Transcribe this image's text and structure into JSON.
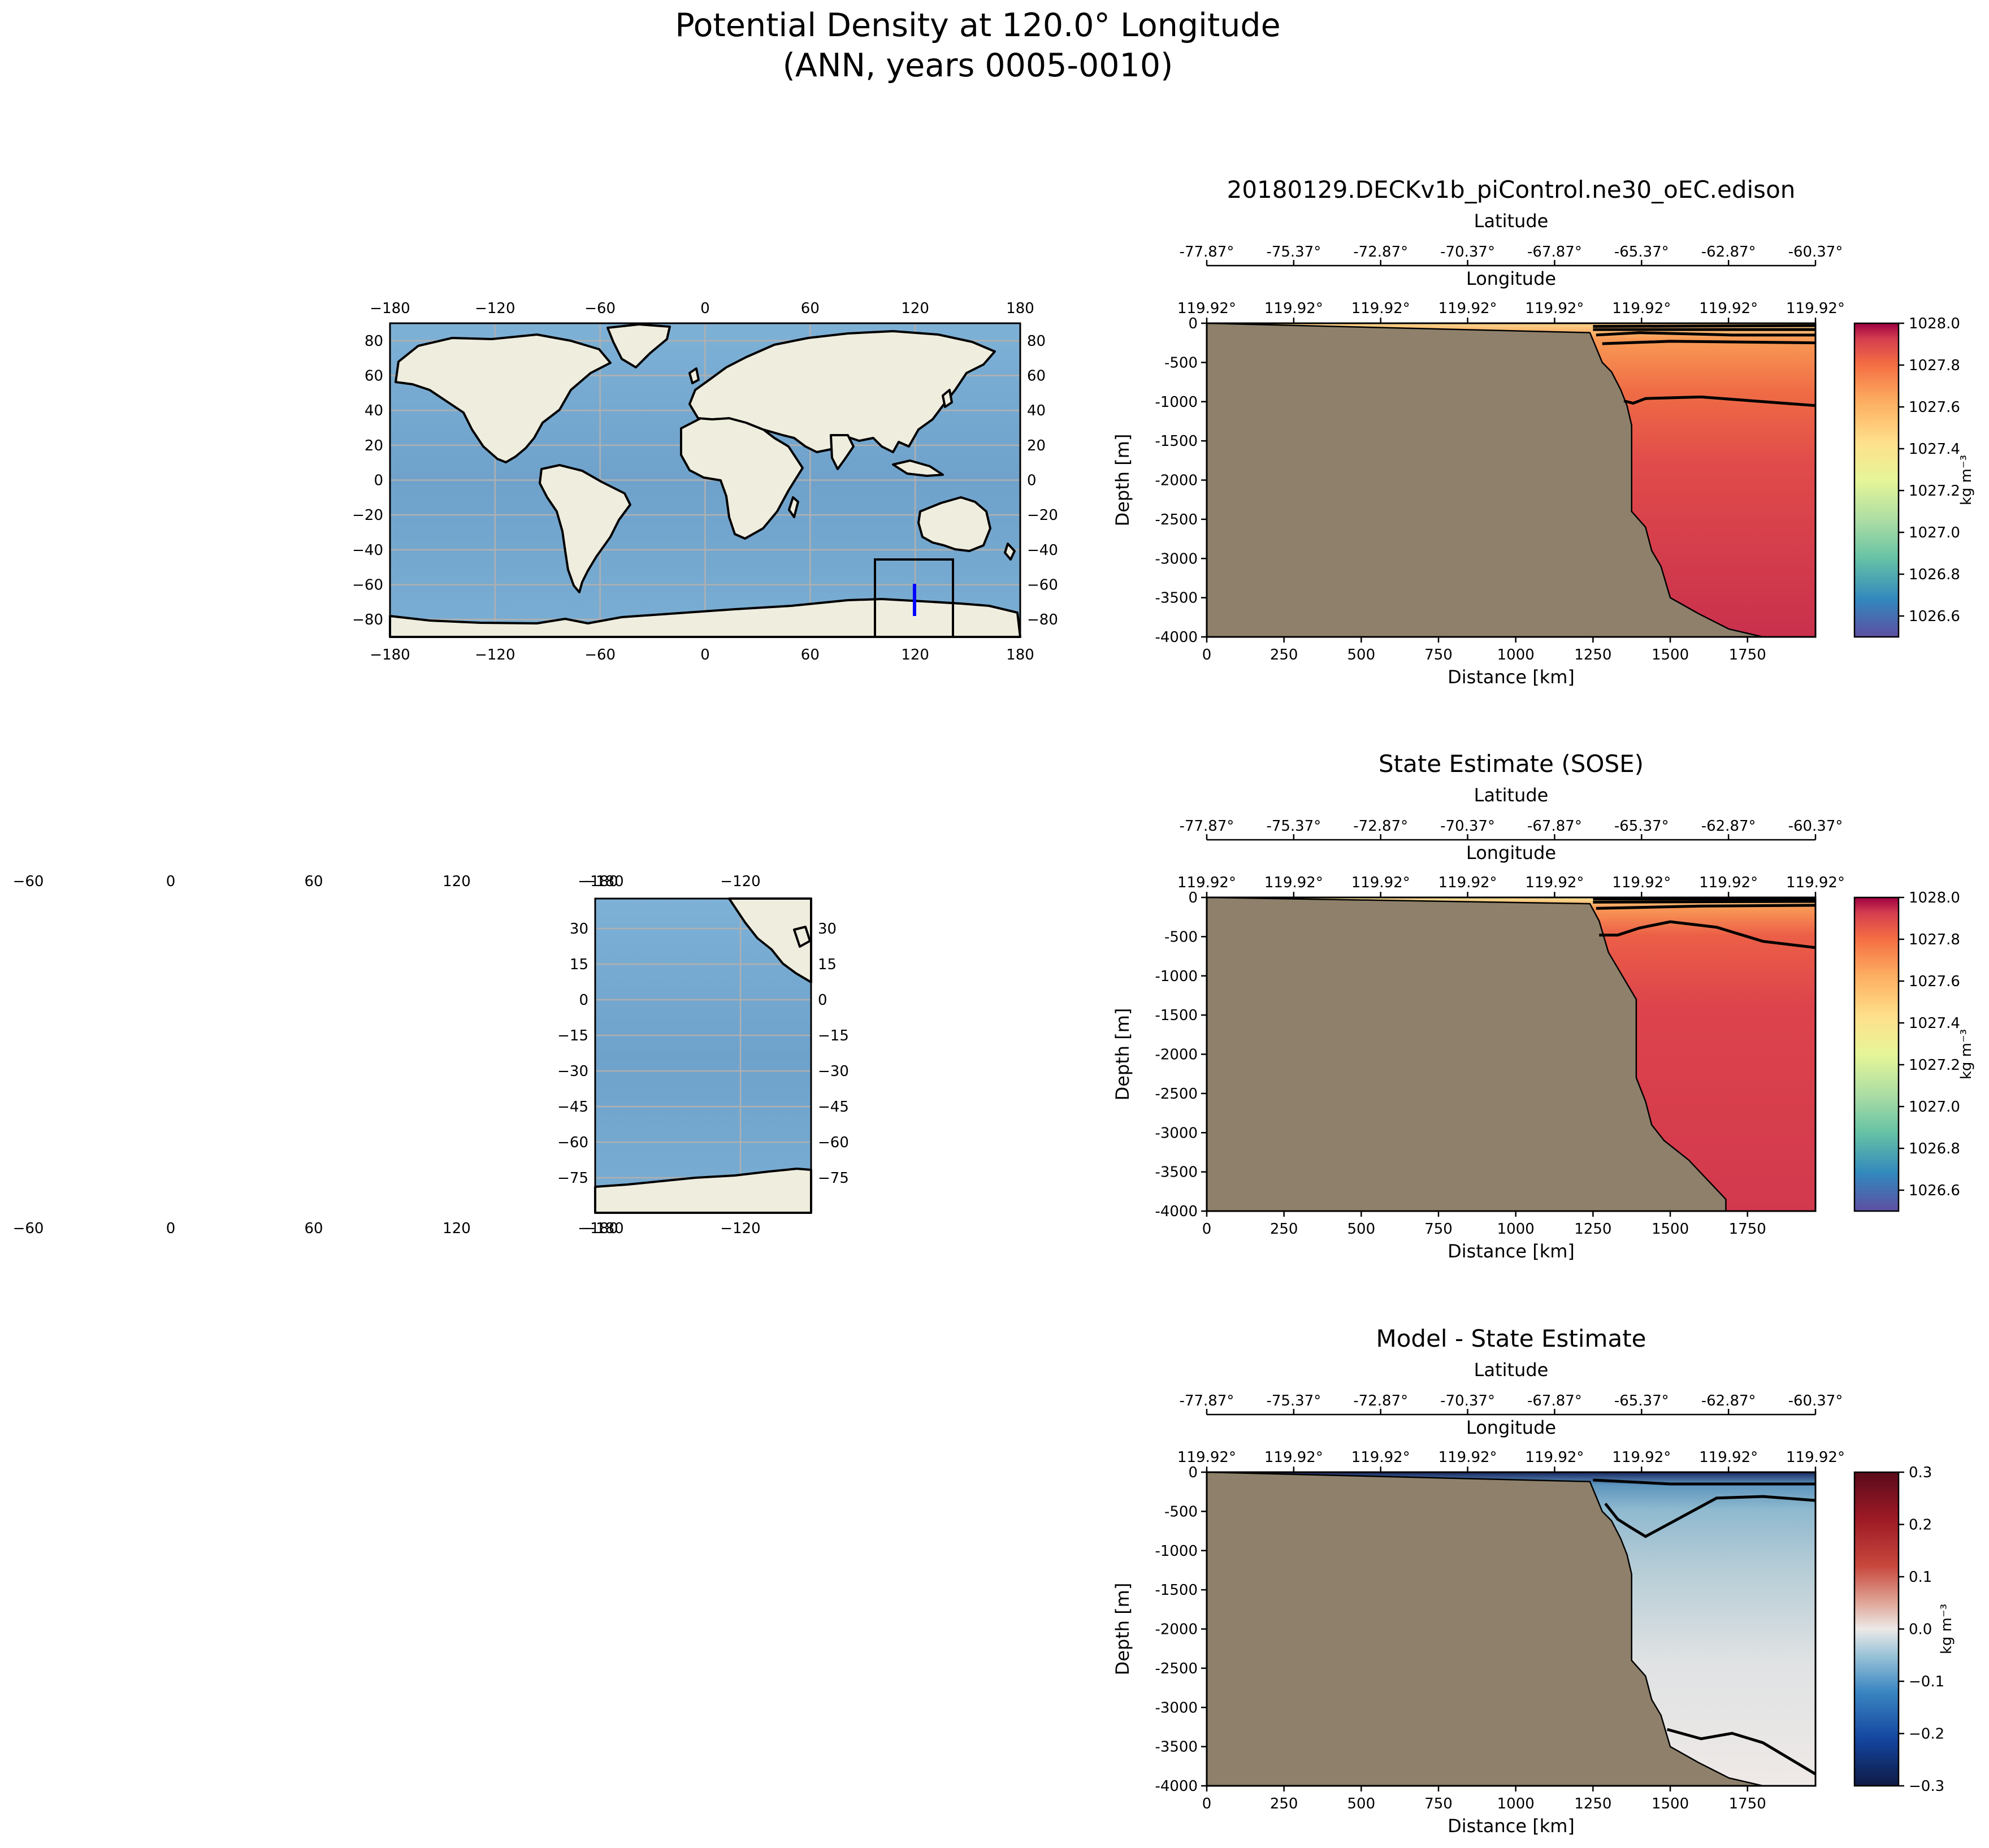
{
  "figure": {
    "title_line1": "Potential Density at 120.0° Longitude",
    "title_line2": "(ANN, years 0005-0010)"
  },
  "colors": {
    "land": "#efedde",
    "ocean": "#76a8cf",
    "seafloor": "#8e806a",
    "transect": "#0000ff",
    "contour": "#000000"
  },
  "world_map": {
    "lon_ticks": [
      "−180",
      "−120",
      "−60",
      "0",
      "60",
      "120",
      "180"
    ],
    "lat_ticks": [
      "80",
      "60",
      "40",
      "20",
      "0",
      "−20",
      "−40",
      "−60",
      "−80"
    ],
    "grid": true
  },
  "inset_map": {
    "lon_ticks_stray": [
      "−60",
      "0",
      "60",
      "120",
      "−180"
    ],
    "lon_ticks": [
      "−180",
      "−120"
    ],
    "lat_ticks": [
      "30",
      "15",
      "0",
      "−15",
      "−30",
      "−45",
      "−60",
      "−75"
    ]
  },
  "chart_data": [
    {
      "type": "heatmap",
      "title": "20180129.DECKv1b_piControl.ne30_oEC.edison",
      "xlabel": "Distance [km]",
      "ylabel": "Depth [m]",
      "top_axis1_label": "Latitude",
      "top_axis2_label": "Longitude",
      "lat_ticks": [
        "-77.87°",
        "-75.37°",
        "-72.87°",
        "-70.37°",
        "-67.87°",
        "-65.37°",
        "-62.87°",
        "-60.37°"
      ],
      "lon_ticks": [
        "119.92°",
        "119.92°",
        "119.92°",
        "119.92°",
        "119.92°",
        "119.92°",
        "119.92°",
        "119.92°"
      ],
      "x_ticks": [
        "0",
        "250",
        "500",
        "750",
        "1000",
        "1250",
        "1500",
        "1750"
      ],
      "y_ticks": [
        "0",
        "-500",
        "-1000",
        "-1500",
        "-2000",
        "-2500",
        "-3000",
        "-3500",
        "-4000"
      ],
      "xlim": [
        0,
        1970
      ],
      "ylim": [
        -4000,
        0
      ],
      "colorbar": {
        "ticks": [
          "1028.0",
          "1027.8",
          "1027.6",
          "1027.4",
          "1027.2",
          "1027.0",
          "1026.8",
          "1026.6"
        ],
        "range": [
          1026.5,
          1028.0
        ],
        "label": "kg m⁻³"
      },
      "bathymetry": [
        [
          1240,
          -120
        ],
        [
          1280,
          -500
        ],
        [
          1310,
          -620
        ],
        [
          1340,
          -850
        ],
        [
          1360,
          -1050
        ],
        [
          1375,
          -1300
        ],
        [
          1375,
          -2400
        ],
        [
          1420,
          -2600
        ],
        [
          1440,
          -2900
        ],
        [
          1470,
          -3100
        ],
        [
          1500,
          -3500
        ],
        [
          1590,
          -3700
        ],
        [
          1690,
          -3900
        ],
        [
          1800,
          -4000
        ]
      ],
      "contours": [
        [
          [
            1250,
            -40
          ],
          [
            1970,
            -30
          ]
        ],
        [
          [
            1250,
            -80
          ],
          [
            1970,
            -80
          ]
        ],
        [
          [
            1260,
            -150
          ],
          [
            1400,
            -120
          ],
          [
            1700,
            -150
          ],
          [
            1970,
            -150
          ]
        ],
        [
          [
            1280,
            -260
          ],
          [
            1500,
            -230
          ],
          [
            1970,
            -250
          ]
        ],
        [
          [
            1350,
            -990
          ],
          [
            1380,
            -1020
          ],
          [
            1420,
            -960
          ],
          [
            1600,
            -940
          ],
          [
            1970,
            -1050
          ]
        ]
      ]
    },
    {
      "type": "heatmap",
      "title": "State Estimate (SOSE)",
      "xlabel": "Distance [km]",
      "ylabel": "Depth [m]",
      "top_axis1_label": "Latitude",
      "top_axis2_label": "Longitude",
      "lat_ticks": [
        "-77.87°",
        "-75.37°",
        "-72.87°",
        "-70.37°",
        "-67.87°",
        "-65.37°",
        "-62.87°",
        "-60.37°"
      ],
      "lon_ticks": [
        "119.92°",
        "119.92°",
        "119.92°",
        "119.92°",
        "119.92°",
        "119.92°",
        "119.92°",
        "119.92°"
      ],
      "x_ticks": [
        "0",
        "250",
        "500",
        "750",
        "1000",
        "1250",
        "1500",
        "1750"
      ],
      "y_ticks": [
        "0",
        "-500",
        "-1000",
        "-1500",
        "-2000",
        "-2500",
        "-3000",
        "-3500",
        "-4000"
      ],
      "xlim": [
        0,
        1970
      ],
      "ylim": [
        -4000,
        0
      ],
      "colorbar": {
        "ticks": [
          "1028.0",
          "1027.8",
          "1027.6",
          "1027.4",
          "1027.2",
          "1027.0",
          "1026.8",
          "1026.6"
        ],
        "range": [
          1026.5,
          1028.0
        ],
        "label": "kg m⁻³"
      },
      "bathymetry": [
        [
          1240,
          -80
        ],
        [
          1270,
          -300
        ],
        [
          1300,
          -700
        ],
        [
          1330,
          -900
        ],
        [
          1360,
          -1100
        ],
        [
          1390,
          -1300
        ],
        [
          1390,
          -2300
        ],
        [
          1420,
          -2600
        ],
        [
          1440,
          -2900
        ],
        [
          1480,
          -3100
        ],
        [
          1560,
          -3350
        ],
        [
          1620,
          -3600
        ],
        [
          1680,
          -3850
        ],
        [
          1680,
          -4000
        ]
      ],
      "contours": [
        [
          [
            1250,
            -20
          ],
          [
            1970,
            -20
          ]
        ],
        [
          [
            1250,
            -60
          ],
          [
            1970,
            -50
          ]
        ],
        [
          [
            1260,
            -140
          ],
          [
            1600,
            -110
          ],
          [
            1970,
            -100
          ]
        ],
        [
          [
            1270,
            -480
          ],
          [
            1330,
            -480
          ],
          [
            1400,
            -390
          ],
          [
            1500,
            -310
          ],
          [
            1650,
            -380
          ],
          [
            1800,
            -560
          ],
          [
            1970,
            -640
          ]
        ]
      ]
    },
    {
      "type": "heatmap",
      "title": "Model - State Estimate",
      "xlabel": "Distance [km]",
      "ylabel": "Depth [m]",
      "top_axis1_label": "Latitude",
      "top_axis2_label": "Longitude",
      "lat_ticks": [
        "-77.87°",
        "-75.37°",
        "-72.87°",
        "-70.37°",
        "-67.87°",
        "-65.37°",
        "-62.87°",
        "-60.37°"
      ],
      "lon_ticks": [
        "119.92°",
        "119.92°",
        "119.92°",
        "119.92°",
        "119.92°",
        "119.92°",
        "119.92°",
        "119.92°"
      ],
      "x_ticks": [
        "0",
        "250",
        "500",
        "750",
        "1000",
        "1250",
        "1500",
        "1750"
      ],
      "y_ticks": [
        "0",
        "-500",
        "-1000",
        "-1500",
        "-2000",
        "-2500",
        "-3000",
        "-3500",
        "-4000"
      ],
      "xlim": [
        0,
        1970
      ],
      "ylim": [
        -4000,
        0
      ],
      "colorbar": {
        "ticks": [
          "0.3",
          "0.2",
          "0.1",
          "0.0",
          "−0.1",
          "−0.2",
          "−0.3"
        ],
        "range": [
          -0.3,
          0.3
        ],
        "label": "kg m⁻³"
      },
      "bathymetry": [
        [
          1240,
          -120
        ],
        [
          1280,
          -500
        ],
        [
          1310,
          -620
        ],
        [
          1340,
          -850
        ],
        [
          1360,
          -1050
        ],
        [
          1375,
          -1300
        ],
        [
          1375,
          -2400
        ],
        [
          1420,
          -2600
        ],
        [
          1440,
          -2900
        ],
        [
          1470,
          -3100
        ],
        [
          1500,
          -3500
        ],
        [
          1590,
          -3700
        ],
        [
          1690,
          -3900
        ],
        [
          1800,
          -4000
        ]
      ],
      "contours": [
        [
          [
            1250,
            -100
          ],
          [
            1500,
            -150
          ],
          [
            1970,
            -150
          ]
        ],
        [
          [
            1290,
            -400
          ],
          [
            1330,
            -600
          ],
          [
            1370,
            -700
          ],
          [
            1420,
            -820
          ],
          [
            1500,
            -650
          ],
          [
            1650,
            -330
          ],
          [
            1800,
            -310
          ],
          [
            1970,
            -360
          ]
        ],
        [
          [
            1490,
            -3280
          ],
          [
            1600,
            -3400
          ],
          [
            1700,
            -3330
          ],
          [
            1800,
            -3450
          ],
          [
            1970,
            -3850
          ]
        ]
      ]
    }
  ]
}
